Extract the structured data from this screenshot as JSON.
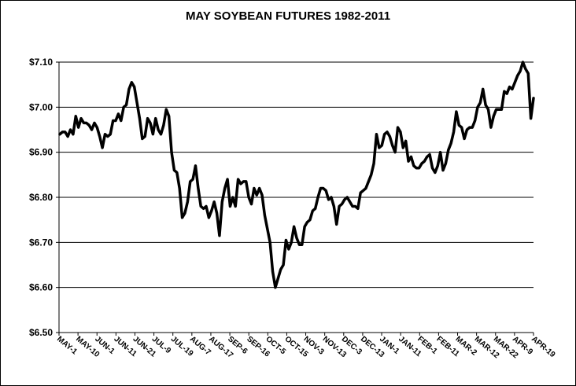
{
  "chart_data": {
    "type": "line",
    "title": "MAY SOYBEAN FUTURES 1982-2011",
    "xlabel": "",
    "ylabel": "",
    "ylim": [
      6.5,
      7.1
    ],
    "y_ticks": [
      {
        "value": 6.5,
        "label": "$6.50"
      },
      {
        "value": 6.6,
        "label": "$6.60"
      },
      {
        "value": 6.7,
        "label": "$6.70"
      },
      {
        "value": 6.8,
        "label": "$6.80"
      },
      {
        "value": 6.9,
        "label": "$6.90"
      },
      {
        "value": 7.0,
        "label": "$7.00"
      },
      {
        "value": 7.1,
        "label": "$7.10"
      }
    ],
    "x_tick_labels": [
      "MAY-1",
      "MAY-10",
      "JUN-1",
      "JUN-11",
      "JUN-21",
      "JUL-9",
      "JUL-19",
      "AUG-7",
      "AUG-17",
      "SEP-6",
      "SEP-16",
      "OCT-5",
      "OCT-15",
      "NOV-3",
      "NOV-13",
      "DEC-3",
      "DEC-13",
      "JAN-1",
      "JAN-11",
      "FEB-1",
      "FEB-11",
      "MAR-2",
      "MAR-12",
      "MAR-22",
      "APR-9",
      "APR-19"
    ],
    "grid": true,
    "line_color": "#000000",
    "series": [
      {
        "values": [
          6.94,
          6.945,
          6.945,
          6.935,
          6.95,
          6.94,
          6.98,
          6.955,
          6.975,
          6.965,
          6.965,
          6.96,
          6.95,
          6.965,
          6.955,
          6.935,
          6.91,
          6.94,
          6.935,
          6.94,
          6.97,
          6.97,
          6.985,
          6.97,
          7.0,
          7.005,
          7.04,
          7.055,
          7.045,
          7.01,
          6.975,
          6.93,
          6.935,
          6.975,
          6.965,
          6.94,
          6.975,
          6.95,
          6.94,
          6.96,
          6.995,
          6.98,
          6.9,
          6.86,
          6.855,
          6.82,
          6.755,
          6.765,
          6.79,
          6.835,
          6.84,
          6.87,
          6.82,
          6.78,
          6.775,
          6.78,
          6.755,
          6.77,
          6.79,
          6.765,
          6.715,
          6.79,
          6.82,
          6.84,
          6.78,
          6.8,
          6.78,
          6.84,
          6.83,
          6.835,
          6.835,
          6.8,
          6.785,
          6.82,
          6.805,
          6.82,
          6.805,
          6.76,
          6.73,
          6.7,
          6.635,
          6.6,
          6.62,
          6.64,
          6.65,
          6.705,
          6.685,
          6.7,
          6.735,
          6.71,
          6.695,
          6.695,
          6.735,
          6.745,
          6.75,
          6.77,
          6.775,
          6.8,
          6.82,
          6.82,
          6.815,
          6.795,
          6.8,
          6.78,
          6.74,
          6.78,
          6.785,
          6.795,
          6.8,
          6.79,
          6.78,
          6.78,
          6.775,
          6.81,
          6.815,
          6.82,
          6.835,
          6.85,
          6.875,
          6.94,
          6.91,
          6.915,
          6.94,
          6.945,
          6.935,
          6.915,
          6.9,
          6.955,
          6.945,
          6.91,
          6.925,
          6.88,
          6.89,
          6.87,
          6.865,
          6.865,
          6.875,
          6.88,
          6.89,
          6.895,
          6.865,
          6.855,
          6.87,
          6.9,
          6.86,
          6.875,
          6.905,
          6.92,
          6.945,
          6.99,
          6.96,
          6.955,
          6.93,
          6.95,
          6.955,
          6.955,
          6.97,
          7.0,
          7.01,
          7.04,
          7.005,
          6.995,
          6.955,
          6.98,
          6.995,
          6.995,
          6.995,
          7.035,
          7.03,
          7.045,
          7.04,
          7.055,
          7.07,
          7.08,
          7.1,
          7.085,
          7.075,
          6.975,
          7.02
        ]
      }
    ]
  }
}
